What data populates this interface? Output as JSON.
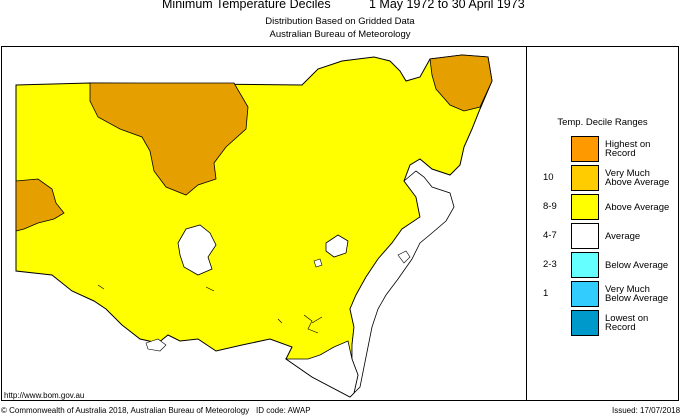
{
  "title": {
    "main": "Minimum Temperature Deciles",
    "period": "1 May 1972 to 30 April 1973"
  },
  "subtitle": {
    "line1": "Distribution Based on Gridded Data",
    "line2": "Australian Bureau of Meteorology"
  },
  "legend": {
    "title": "Temp. Decile Ranges",
    "items": [
      {
        "decile": "",
        "label_lines": [
          "Highest on",
          "Record"
        ],
        "color": "#FF9900"
      },
      {
        "decile": "10",
        "label_lines": [
          "Very Much",
          "Above Average"
        ],
        "color": "#FFCC00"
      },
      {
        "decile": "8-9",
        "label_lines": [
          "Above Average"
        ],
        "color": "#FFFF00"
      },
      {
        "decile": "4-7",
        "label_lines": [
          "Average"
        ],
        "color": "#FFFFFF"
      },
      {
        "decile": "2-3",
        "label_lines": [
          "Below Average"
        ],
        "color": "#66FFFF"
      },
      {
        "decile": "1",
        "label_lines": [
          "Very Much",
          "Below Average"
        ],
        "color": "#33CCFF"
      },
      {
        "decile": "",
        "label_lines": [
          "Lowest on",
          "Record"
        ],
        "color": "#0099CC"
      }
    ]
  },
  "map": {
    "colors": {
      "above_average": "#FFFF00",
      "very_much_above": "#E5A000",
      "average": "#FFFFFF",
      "outline": "#000000"
    }
  },
  "footer": {
    "url": "http://www.bom.gov.au",
    "copyright": "© Commonwealth of Australia 2018, Australian Bureau of Meteorology",
    "id_code": "ID code: AWAP",
    "issued": "Issued: 17/07/2018"
  }
}
